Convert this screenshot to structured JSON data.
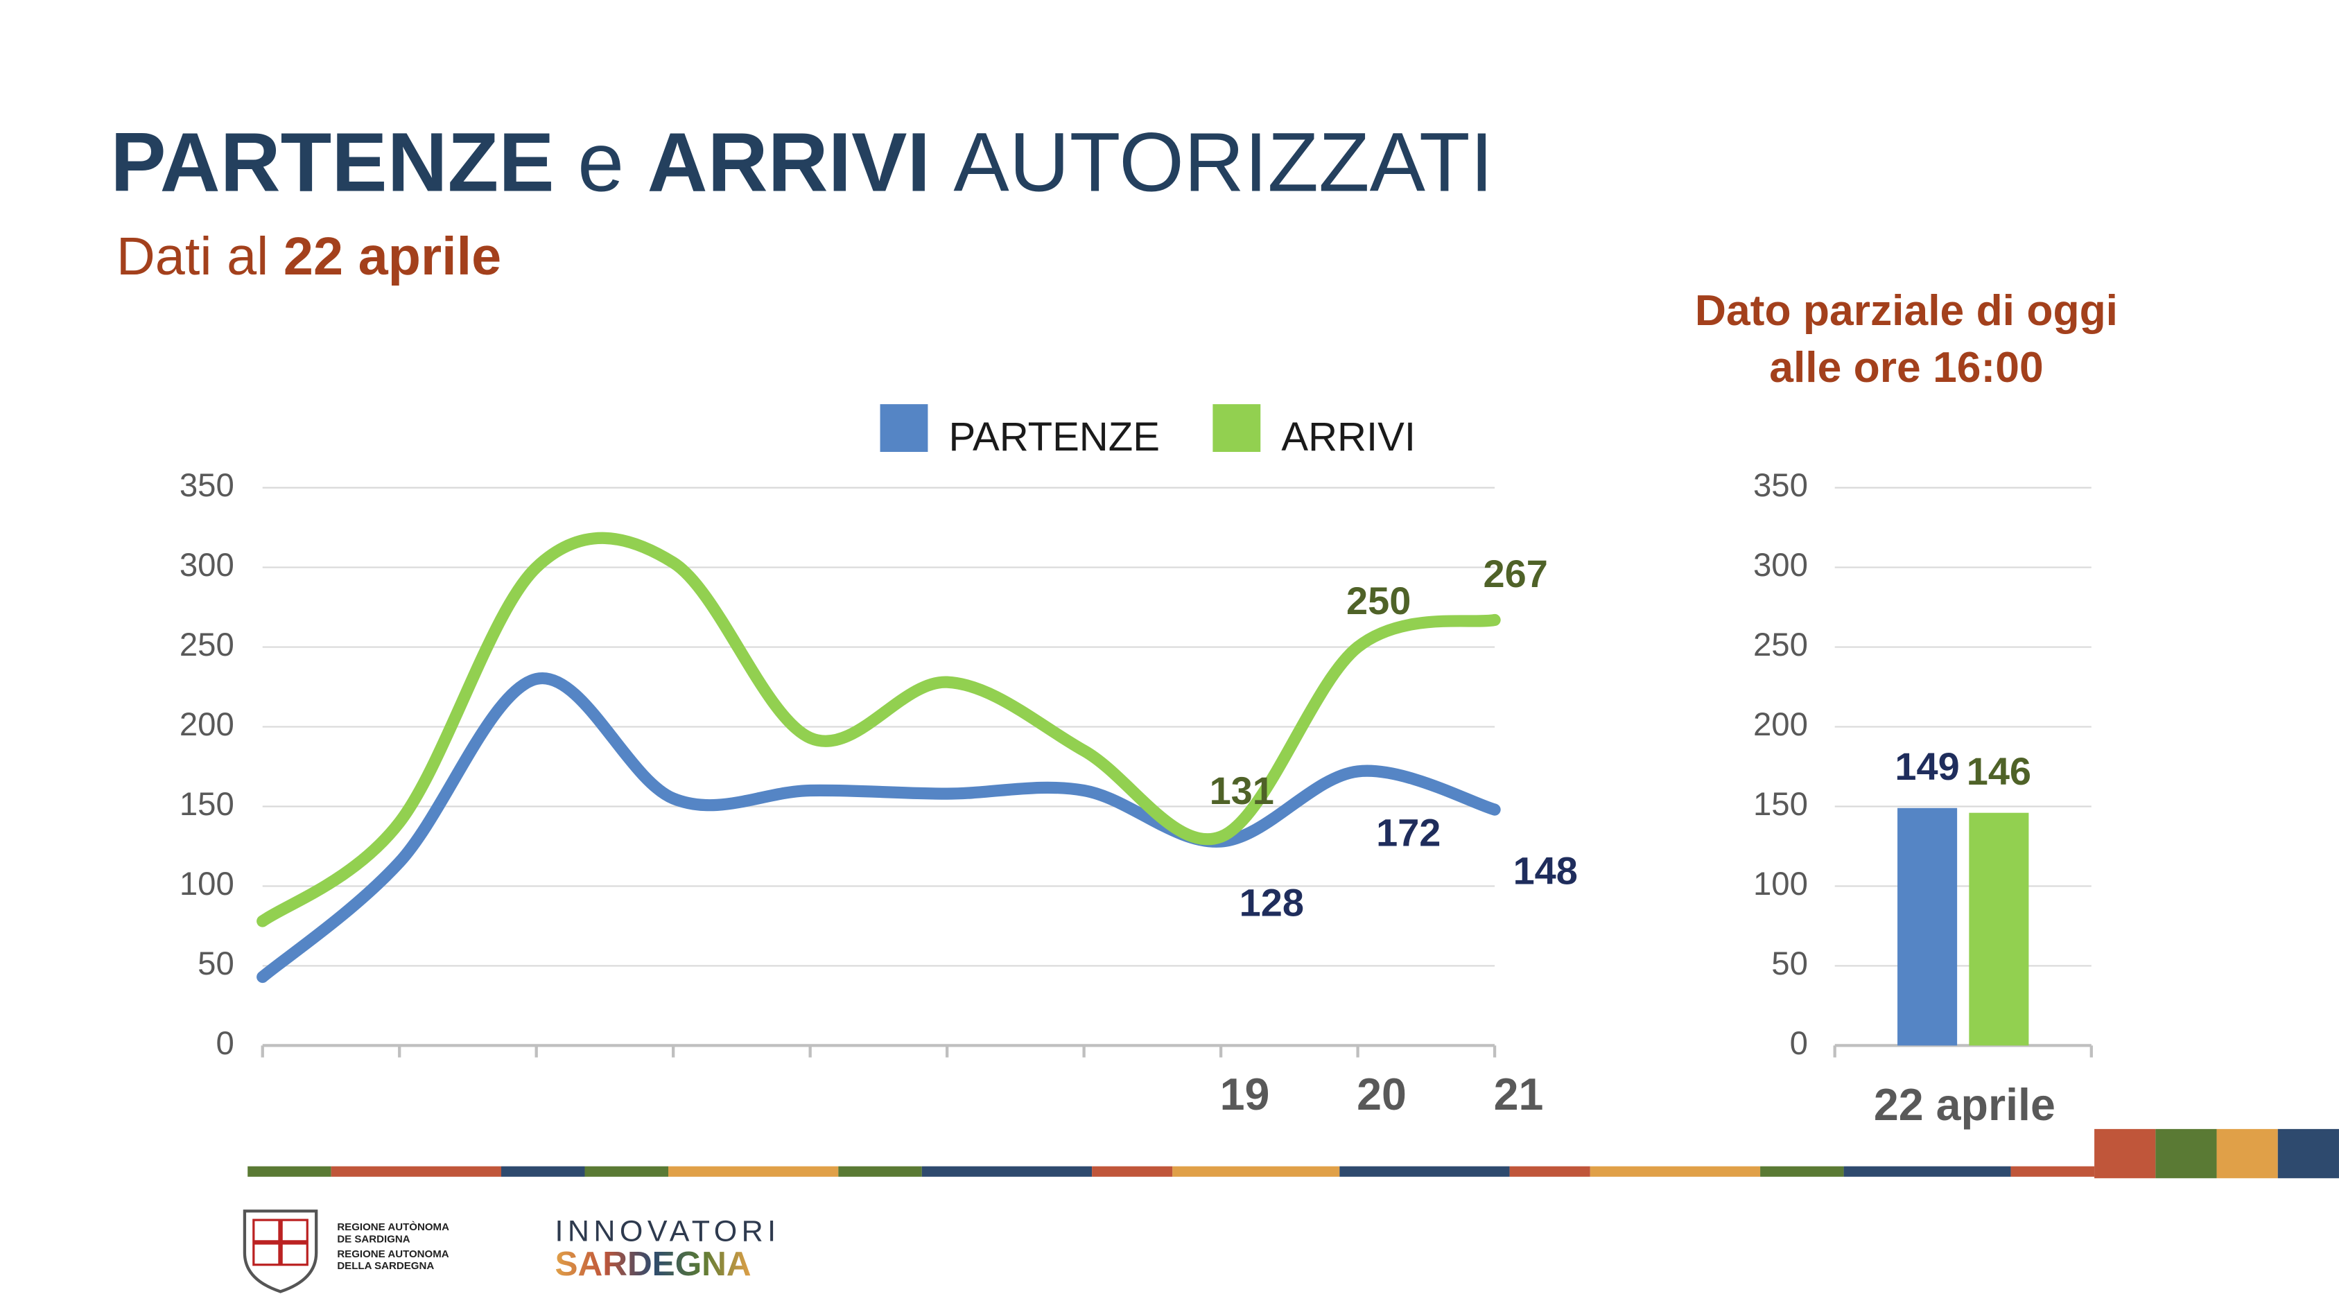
{
  "header": {
    "title": [
      "PARTENZE",
      "e",
      "ARRIVI",
      "AUTORIZZATI"
    ],
    "subtitle": [
      "Dati al",
      "22 aprile"
    ]
  },
  "chart_data": [
    {
      "type": "line",
      "smooth": true,
      "grid": true,
      "categories": [
        null,
        null,
        null,
        null,
        null,
        null,
        null,
        "19",
        "20",
        "21"
      ],
      "ylim": [
        0,
        350
      ],
      "yticks": [
        0,
        50,
        100,
        150,
        200,
        250,
        300,
        350
      ],
      "legend": "top",
      "series": [
        {
          "name": "PARTENZE",
          "color": "#5585c5",
          "label_color": "#1f2d5c",
          "values": [
            43,
            115,
            230,
            155,
            160,
            158,
            160,
            128,
            172,
            148
          ],
          "value_labels": [
            null,
            null,
            null,
            null,
            null,
            null,
            null,
            "128",
            "172",
            "148"
          ]
        },
        {
          "name": "ARRIVI",
          "color": "#92d050",
          "label_color": "#4f6228",
          "values": [
            78,
            140,
            300,
            303,
            193,
            228,
            185,
            131,
            250,
            267
          ],
          "value_labels": [
            null,
            null,
            null,
            null,
            null,
            null,
            null,
            "131",
            "250",
            "267"
          ]
        }
      ]
    },
    {
      "type": "bar",
      "grid": true,
      "title": [
        "Dato parziale di oggi",
        "alle ore 16:00"
      ],
      "categories": [
        "22 aprile"
      ],
      "ylim": [
        0,
        350
      ],
      "yticks": [
        0,
        50,
        100,
        150,
        200,
        250,
        300,
        350
      ],
      "series": [
        {
          "name": "PARTENZE",
          "color": "#5585c5",
          "label_color": "#1f2d5c",
          "values": [
            149
          ]
        },
        {
          "name": "ARRIVI",
          "color": "#92d050",
          "label_color": "#4f6228",
          "values": [
            146
          ]
        }
      ]
    }
  ],
  "footer": {
    "region": [
      "REGIONE AUTÒNOMA",
      "DE SARDIGNA",
      "REGIONE AUTONOMA",
      "DELLA SARDEGNA"
    ],
    "brand": [
      "INNOVATORI",
      "SARDEGNA"
    ]
  }
}
